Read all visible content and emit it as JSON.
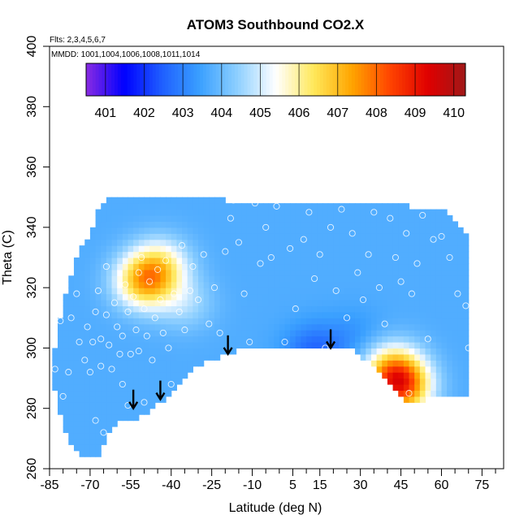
{
  "chart_data": {
    "type": "heatmap",
    "title": "ATOM3 Southbound CO2.X",
    "flights_note": "Flts: 2,3,4,5,6,7",
    "dates_note": "MMDD: 1001,1004,1006,1008,1011,1014",
    "xlabel": "Latitude (deg N)",
    "ylabel": "Theta (C)",
    "xlim": [
      -85,
      83
    ],
    "ylim": [
      260,
      400
    ],
    "x_ticks": [
      "-85",
      "-70",
      "-55",
      "-40",
      "-25",
      "-10",
      "5",
      "15",
      "30",
      "45",
      "60",
      "75"
    ],
    "y_ticks": [
      "260",
      "280",
      "300",
      "320",
      "340",
      "360",
      "380",
      "400"
    ],
    "colorbar": {
      "range": [
        400.5,
        410.3
      ],
      "ticks": [
        "401",
        "402",
        "403",
        "404",
        "405",
        "406",
        "407",
        "408",
        "409",
        "410"
      ],
      "colors": [
        "#8a2be2",
        "#0000ff",
        "#1f5fff",
        "#3aa0ff",
        "#8fd0ff",
        "#ffffff",
        "#ffe85a",
        "#ffa500",
        "#ff4500",
        "#e00000",
        "#a01818"
      ]
    },
    "field": {
      "background_value": 403.7,
      "upper_boundary": [
        [
          -81,
          309
        ],
        [
          -78,
          322
        ],
        [
          -74,
          333
        ],
        [
          -70,
          337
        ],
        [
          -67,
          345
        ],
        [
          -64,
          349
        ],
        [
          -55,
          350
        ],
        [
          -20,
          349
        ],
        [
          10,
          349
        ],
        [
          40,
          348
        ],
        [
          62,
          345
        ],
        [
          70,
          338
        ],
        [
          71,
          320
        ],
        [
          71,
          284
        ]
      ],
      "lower_boundary": [
        [
          71,
          284
        ],
        [
          55,
          283
        ],
        [
          46,
          283
        ],
        [
          40,
          288
        ],
        [
          35,
          294
        ],
        [
          28,
          299
        ],
        [
          18,
          300
        ],
        [
          5,
          301
        ],
        [
          -10,
          301
        ],
        [
          -20,
          298
        ],
        [
          -30,
          294
        ],
        [
          -40,
          285
        ],
        [
          -47,
          280
        ],
        [
          -52,
          277
        ],
        [
          -58,
          276
        ],
        [
          -64,
          271
        ],
        [
          -67,
          264
        ],
        [
          -70,
          263
        ],
        [
          -74,
          265
        ],
        [
          -78,
          270
        ],
        [
          -82,
          280
        ],
        [
          -84,
          292
        ],
        [
          -82,
          309
        ]
      ],
      "anomalies": [
        {
          "lat": -44,
          "theta": 328,
          "value": 405.6
        },
        {
          "lat": -50,
          "theta": 322,
          "value": 406.8
        },
        {
          "lat": -35,
          "theta": 315,
          "value": 404.6
        },
        {
          "lat": 13,
          "theta": 299,
          "value": 402.6
        },
        {
          "lat": 28,
          "theta": 304,
          "value": 403.3
        },
        {
          "lat": 45,
          "theta": 287,
          "value": 407.6
        },
        {
          "lat": 42,
          "theta": 293,
          "value": 406.3
        }
      ]
    },
    "points": [
      [
        -83,
        293
      ],
      [
        -81,
        309
      ],
      [
        -80,
        284
      ],
      [
        -78,
        292
      ],
      [
        -77,
        310
      ],
      [
        -75,
        318
      ],
      [
        -74,
        302
      ],
      [
        -72,
        296
      ],
      [
        -71,
        307
      ],
      [
        -70,
        292
      ],
      [
        -69,
        302
      ],
      [
        -68,
        312
      ],
      [
        -68,
        276
      ],
      [
        -67,
        319
      ],
      [
        -66,
        303
      ],
      [
        -66,
        294
      ],
      [
        -65,
        272
      ],
      [
        -64,
        311
      ],
      [
        -64,
        327
      ],
      [
        -63,
        301
      ],
      [
        -62,
        293
      ],
      [
        -61,
        315
      ],
      [
        -60,
        307
      ],
      [
        -59,
        298
      ],
      [
        -58,
        304
      ],
      [
        -58,
        288
      ],
      [
        -57,
        321
      ],
      [
        -56,
        312
      ],
      [
        -56,
        281
      ],
      [
        -55,
        298
      ],
      [
        -54,
        317
      ],
      [
        -53,
        306
      ],
      [
        -52,
        325
      ],
      [
        -52,
        299
      ],
      [
        -51,
        330
      ],
      [
        -50,
        313
      ],
      [
        -50,
        282
      ],
      [
        -49,
        304
      ],
      [
        -48,
        322
      ],
      [
        -47,
        296
      ],
      [
        -46,
        310
      ],
      [
        -45,
        326
      ],
      [
        -44,
        316
      ],
      [
        -43,
        305
      ],
      [
        -42,
        329
      ],
      [
        -41,
        300
      ],
      [
        -40,
        288
      ],
      [
        -39,
        318
      ],
      [
        -37,
        312
      ],
      [
        -36,
        334
      ],
      [
        -35,
        306
      ],
      [
        -33,
        319
      ],
      [
        -32,
        327
      ],
      [
        -30,
        316
      ],
      [
        -28,
        331
      ],
      [
        -26,
        308
      ],
      [
        -24,
        320
      ],
      [
        -22,
        305
      ],
      [
        -20,
        332
      ],
      [
        -18,
        343
      ],
      [
        -17,
        349
      ],
      [
        -15,
        335
      ],
      [
        -13,
        318
      ],
      [
        -11,
        302
      ],
      [
        -9,
        348
      ],
      [
        -7,
        328
      ],
      [
        -5,
        340
      ],
      [
        -3,
        330
      ],
      [
        -1,
        347
      ],
      [
        2,
        302
      ],
      [
        4,
        333
      ],
      [
        6,
        313
      ],
      [
        9,
        336
      ],
      [
        11,
        345
      ],
      [
        13,
        323
      ],
      [
        15,
        331
      ],
      [
        17,
        300
      ],
      [
        19,
        340
      ],
      [
        21,
        319
      ],
      [
        23,
        346
      ],
      [
        25,
        310
      ],
      [
        27,
        338
      ],
      [
        29,
        325
      ],
      [
        31,
        316
      ],
      [
        33,
        331
      ],
      [
        35,
        345
      ],
      [
        37,
        320
      ],
      [
        39,
        308
      ],
      [
        41,
        343
      ],
      [
        43,
        330
      ],
      [
        45,
        322
      ],
      [
        47,
        338
      ],
      [
        49,
        318
      ],
      [
        51,
        328
      ],
      [
        53,
        344
      ],
      [
        55,
        303
      ],
      [
        57,
        336
      ],
      [
        60,
        337
      ],
      [
        63,
        330
      ],
      [
        66,
        318
      ],
      [
        69,
        314
      ],
      [
        70,
        300
      ],
      [
        33,
        291
      ],
      [
        48,
        285
      ]
    ],
    "arrows": [
      {
        "lat": -54,
        "theta": 280
      },
      {
        "lat": -44,
        "theta": 283
      },
      {
        "lat": -19,
        "theta": 298
      },
      {
        "lat": 19,
        "theta": 300
      }
    ]
  }
}
